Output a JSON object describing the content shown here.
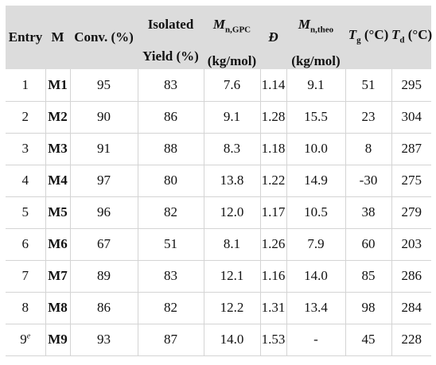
{
  "headers": {
    "entry": "Entry",
    "m": "M",
    "conv": "Conv. (%)",
    "isolated_top": "Isolated",
    "isolated_bottom": "Yield (%)",
    "mn_gpc_sym": "M",
    "mn_gpc_sub": "n,GPC",
    "mn_gpc_unit": "(kg/mol)",
    "dispersity": "Đ",
    "mn_theo_sym": "M",
    "mn_theo_sub": "n,theo",
    "mn_theo_unit": "(kg/mol)",
    "tg_sym": "T",
    "tg_sub": "g",
    "tg_unit": " (°C)",
    "td_sym": "T",
    "td_sub": "d",
    "td_unit": " (°C)"
  },
  "rows": [
    {
      "entry": "1",
      "sup": "",
      "m": "M1",
      "conv": "95",
      "yield": "83",
      "mn_gpc": "7.6",
      "d": "1.14",
      "mn_theo": "9.1",
      "tg": "51",
      "td": "295"
    },
    {
      "entry": "2",
      "sup": "",
      "m": "M2",
      "conv": "90",
      "yield": "86",
      "mn_gpc": "9.1",
      "d": "1.28",
      "mn_theo": "15.5",
      "tg": "23",
      "td": "304"
    },
    {
      "entry": "3",
      "sup": "",
      "m": "M3",
      "conv": "91",
      "yield": "88",
      "mn_gpc": "8.3",
      "d": "1.18",
      "mn_theo": "10.0",
      "tg": "8",
      "td": "287"
    },
    {
      "entry": "4",
      "sup": "",
      "m": "M4",
      "conv": "97",
      "yield": "80",
      "mn_gpc": "13.8",
      "d": "1.22",
      "mn_theo": "14.9",
      "tg": "-30",
      "td": "275"
    },
    {
      "entry": "5",
      "sup": "",
      "m": "M5",
      "conv": "96",
      "yield": "82",
      "mn_gpc": "12.0",
      "d": "1.17",
      "mn_theo": "10.5",
      "tg": "38",
      "td": "279"
    },
    {
      "entry": "6",
      "sup": "",
      "m": "M6",
      "conv": "67",
      "yield": "51",
      "mn_gpc": "8.1",
      "d": "1.26",
      "mn_theo": "7.9",
      "tg": "60",
      "td": "203"
    },
    {
      "entry": "7",
      "sup": "",
      "m": "M7",
      "conv": "89",
      "yield": "83",
      "mn_gpc": "12.1",
      "d": "1.16",
      "mn_theo": "14.0",
      "tg": "85",
      "td": "286"
    },
    {
      "entry": "8",
      "sup": "",
      "m": "M8",
      "conv": "86",
      "yield": "82",
      "mn_gpc": "12.2",
      "d": "1.31",
      "mn_theo": "13.4",
      "tg": "98",
      "td": "284"
    },
    {
      "entry": "9",
      "sup": "e",
      "m": "M9",
      "conv": "93",
      "yield": "87",
      "mn_gpc": "14.0",
      "d": "1.53",
      "mn_theo": "-",
      "tg": "45",
      "td": "228"
    }
  ]
}
